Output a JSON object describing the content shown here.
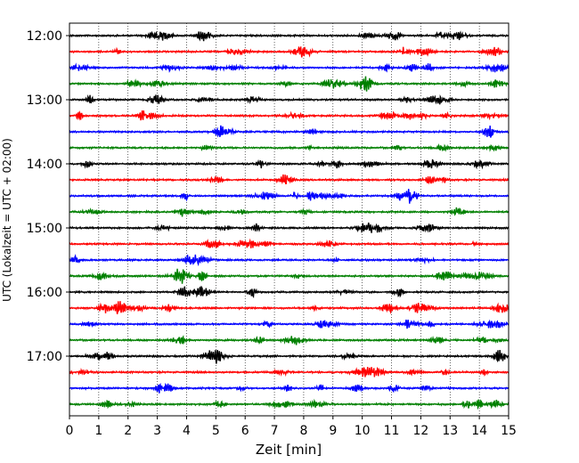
{
  "chart_data": {
    "type": "line",
    "title": "",
    "xlabel": "Zeit  [min]",
    "ylabel": "UTC (Lokalzeit = UTC + 02:00)",
    "xlim": [
      0,
      15
    ],
    "xticks": [
      0,
      1,
      2,
      3,
      4,
      5,
      6,
      7,
      8,
      9,
      10,
      11,
      12,
      13,
      14,
      15
    ],
    "ytick_labels": [
      "12:00",
      "13:00",
      "14:00",
      "15:00",
      "16:00",
      "17:00"
    ],
    "ytick_rows": [
      0,
      4,
      8,
      12,
      16,
      20
    ],
    "rows": [
      "12:00",
      "12:15",
      "12:30",
      "12:45",
      "13:00",
      "13:15",
      "13:30",
      "13:45",
      "14:00",
      "14:15",
      "14:30",
      "14:45",
      "15:00",
      "15:15",
      "15:30",
      "15:45",
      "16:00",
      "16:15",
      "16:30",
      "16:45",
      "17:00",
      "17:15",
      "17:30",
      "17:45"
    ],
    "row_colors": [
      "#000000",
      "#ff0000",
      "#0000ff",
      "#008000"
    ],
    "grid": "vertical dotted at each minute"
  }
}
